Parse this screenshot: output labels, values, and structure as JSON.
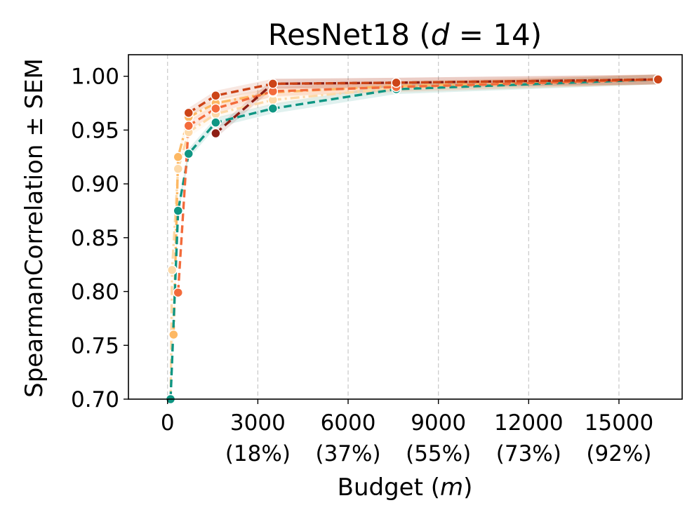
{
  "chart_data": {
    "type": "line",
    "title_main": "ResNet18 (",
    "title_var": "d",
    "title_rest": " = 14)",
    "xlabel_main": "Budget (",
    "xlabel_var": "m",
    "xlabel_rest": ")",
    "ylabel": "SpearmanCorrelation ± SEM",
    "xlim": [
      -1300,
      17100
    ],
    "ylim": [
      0.7,
      1.02
    ],
    "grid": "vertical dashed",
    "x_ticks": [
      {
        "value": 0,
        "label": "0",
        "sublabel": ""
      },
      {
        "value": 3000,
        "label": "3000",
        "sublabel": "(18%)"
      },
      {
        "value": 6000,
        "label": "6000",
        "sublabel": "(37%)"
      },
      {
        "value": 9000,
        "label": "9000",
        "sublabel": "(55%)"
      },
      {
        "value": 12000,
        "label": "12000",
        "sublabel": "(73%)"
      },
      {
        "value": 15000,
        "label": "15000",
        "sublabel": "(92%)"
      }
    ],
    "y_ticks": [
      {
        "value": 0.7,
        "label": "0.70"
      },
      {
        "value": 0.75,
        "label": "0.75"
      },
      {
        "value": 0.8,
        "label": "0.80"
      },
      {
        "value": 0.85,
        "label": "0.85"
      },
      {
        "value": 0.9,
        "label": "0.90"
      },
      {
        "value": 0.95,
        "label": "0.95"
      },
      {
        "value": 1.0,
        "label": "1.00"
      }
    ],
    "series": [
      {
        "color": "#fdd9a8",
        "dash": "dot-dash",
        "x": [
          100,
          150,
          350,
          700,
          1600,
          3500,
          7600,
          16300
        ],
        "y": [
          0.695,
          0.82,
          0.914,
          0.948,
          0.965,
          0.978,
          0.989,
          0.997
        ]
      },
      {
        "color": "#fdb863",
        "dash": "dot-dash",
        "x": [
          200,
          350,
          700,
          1600,
          3500,
          7600,
          16300
        ],
        "y": [
          0.76,
          0.925,
          0.962,
          0.975,
          0.985,
          0.991,
          0.997
        ]
      },
      {
        "color": "#0f9683",
        "dash": "dashed",
        "x": [
          100,
          350,
          700,
          1600,
          3500,
          7600,
          16300
        ],
        "y": [
          0.7,
          0.875,
          0.928,
          0.957,
          0.97,
          0.988,
          0.997
        ]
      },
      {
        "color": "#f36b3b",
        "dash": "dashed",
        "x": [
          350,
          700,
          1600,
          3500,
          7600,
          16300
        ],
        "y": [
          0.799,
          0.954,
          0.97,
          0.986,
          0.99,
          0.997
        ]
      },
      {
        "color": "#8e1e14",
        "dash": "dashed",
        "x": [
          1600,
          3500,
          7600,
          16300
        ],
        "y": [
          0.947,
          0.993,
          0.994,
          0.997
        ]
      },
      {
        "color": "#cc4417",
        "dash": "dashed",
        "x": [
          700,
          1600,
          3500,
          7600,
          16300
        ],
        "y": [
          0.966,
          0.982,
          0.993,
          0.994,
          0.997
        ]
      }
    ]
  }
}
